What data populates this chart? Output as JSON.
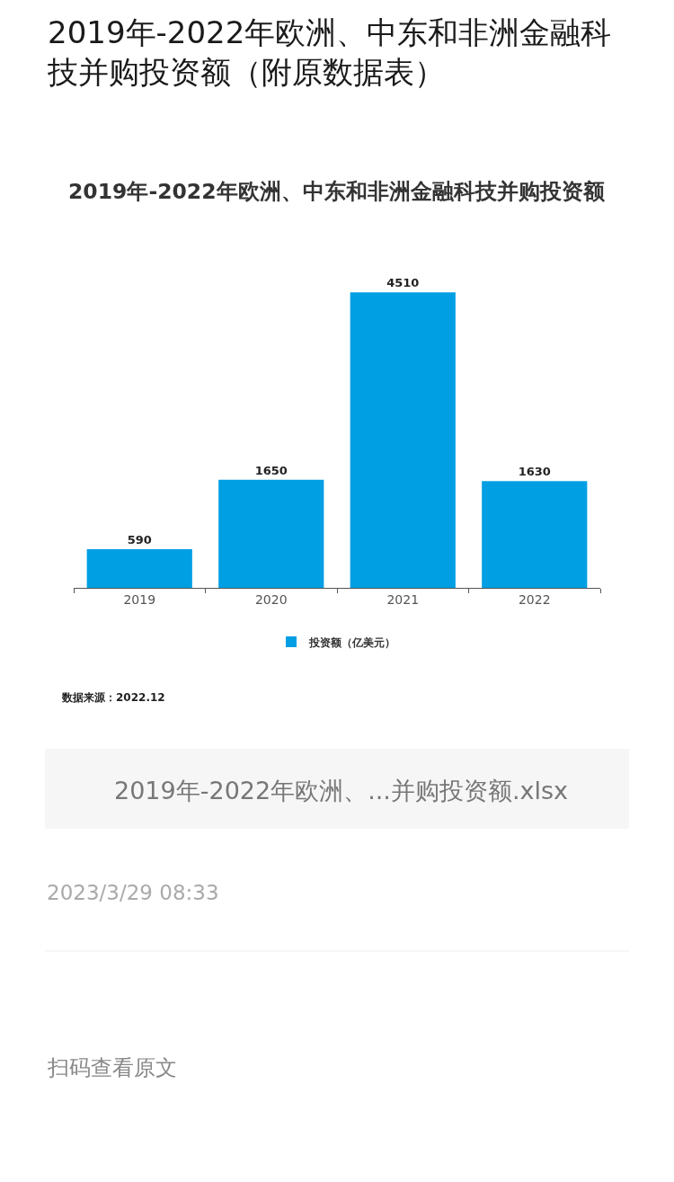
{
  "chart_data": {
    "type": "bar",
    "title": "2019年-2022年欧洲、中东和非洲金融科技并购投资额（附原数据表）",
    "subtitle": "2019年-2022年欧洲、中东和非洲金融科技并购投资额",
    "categories": [
      "2019",
      "2020",
      "2021",
      "2022"
    ],
    "series": [
      {
        "name": "投资额（亿美元）",
        "color": "#009fe3",
        "values": [
          590,
          1650,
          4510,
          1630
        ]
      }
    ],
    "data_labels": true,
    "legend": "bottom",
    "tick_labels": "x",
    "annotations": [
      "数据来源：2022.12",
      "2019年-2022年欧洲、...并购投资额.xlsx",
      "2023/3/29 08:33",
      "扫码查看原文"
    ]
  }
}
